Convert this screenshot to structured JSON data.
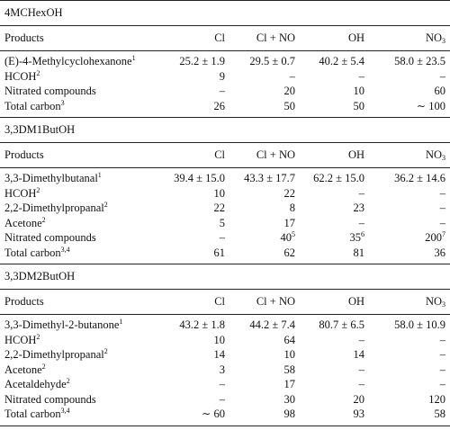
{
  "sections": [
    {
      "title": "4MCHexOH",
      "header": [
        "Products",
        "Cl",
        "Cl + NO",
        "OH",
        {
          "text": "NO",
          "sub": "3"
        }
      ],
      "rows": [
        [
          {
            "text": "(E)-4-Methylcyclohexanone",
            "sup": "1"
          },
          "25.2 ± 1.9",
          "29.5 ± 0.7",
          "40.2 ± 5.4",
          "58.0 ± 23.5"
        ],
        [
          {
            "text": "HCOH",
            "sup": "2"
          },
          "9",
          "–",
          "–",
          "–"
        ],
        [
          "Nitrated compounds",
          "–",
          "20",
          "10",
          "60"
        ],
        [
          {
            "text": "Total carbon",
            "sup": "3"
          },
          "26",
          "50",
          "50",
          "∼ 100"
        ]
      ]
    },
    {
      "title": "3,3DM1ButOH",
      "header": [
        "Products",
        "Cl",
        "Cl + NO",
        "OH",
        {
          "text": "NO",
          "sub": "3"
        }
      ],
      "rows": [
        [
          {
            "text": "3,3-Dimethylbutanal",
            "sup": "1"
          },
          "39.4 ± 15.0",
          "43.3 ± 17.7",
          "62.2 ± 15.0",
          "36.2 ± 14.6"
        ],
        [
          {
            "text": "HCOH",
            "sup": "2"
          },
          "10",
          "22",
          "–",
          "–"
        ],
        [
          {
            "text": "2,2-Dimethylpropanal",
            "sup": "2"
          },
          "22",
          "8",
          "23",
          "–"
        ],
        [
          {
            "text": "Acetone",
            "sup": "2"
          },
          "5",
          "17",
          "–",
          "–"
        ],
        [
          "Nitrated compounds",
          "–",
          {
            "text": "40",
            "sup": "5"
          },
          {
            "text": "35",
            "sup": "6"
          },
          {
            "text": "200",
            "sup": "7"
          }
        ],
        [
          {
            "text": "Total carbon",
            "sup": "3,4"
          },
          "61",
          "62",
          "81",
          "36"
        ]
      ]
    },
    {
      "title": "3,3DM2ButOH",
      "header": [
        "Products",
        "Cl",
        "Cl + NO",
        "OH",
        {
          "text": "NO",
          "sub": "3"
        }
      ],
      "rows": [
        [
          {
            "text": "3,3-Dimethyl-2-butanone",
            "sup": "1"
          },
          "43.2 ± 1.8",
          "44.2 ± 7.4",
          "80.7 ± 6.5",
          "58.0 ± 10.9"
        ],
        [
          {
            "text": "HCOH",
            "sup": "2"
          },
          "10",
          "64",
          "–",
          "–"
        ],
        [
          {
            "text": "2,2-Dimethylpropanal",
            "sup": "2"
          },
          "14",
          "10",
          "14",
          "–"
        ],
        [
          {
            "text": "Acetone",
            "sup": "2"
          },
          "3",
          "58",
          "–",
          "–"
        ],
        [
          {
            "text": "Acetaldehyde",
            "sup": "2"
          },
          "–",
          "17",
          "–",
          "–"
        ],
        [
          "Nitrated compounds",
          "–",
          "30",
          "20",
          "120"
        ],
        [
          {
            "text": "Total carbon",
            "sup": "3,4"
          },
          "∼ 60",
          "98",
          "93",
          "58"
        ]
      ]
    }
  ]
}
